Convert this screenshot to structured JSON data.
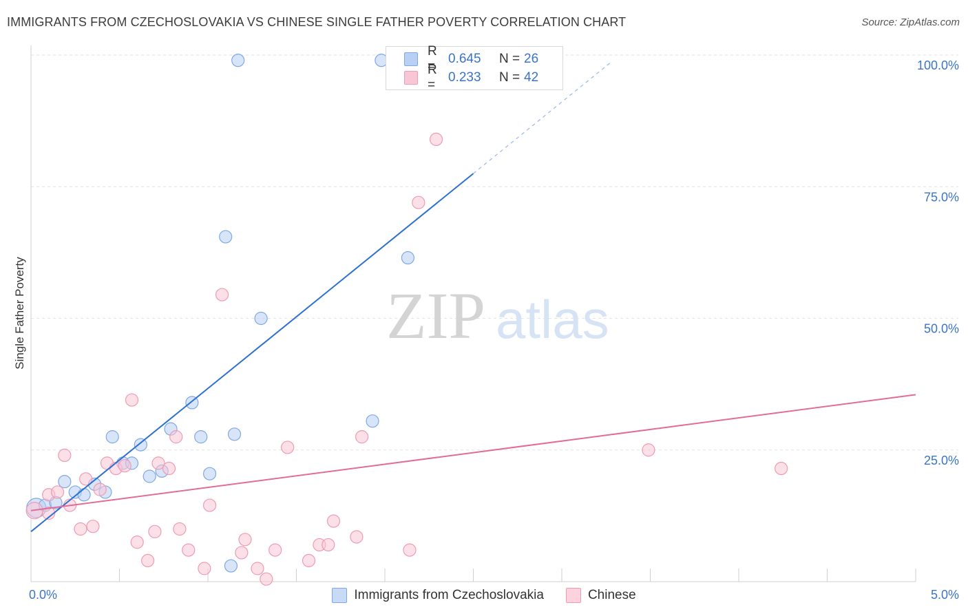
{
  "title": "IMMIGRANTS FROM CZECHOSLOVAKIA VS CHINESE SINGLE FATHER POVERTY CORRELATION CHART",
  "source": "Source: ZipAtlas.com",
  "watermark": {
    "zip": "ZIP",
    "atlas": "atlas"
  },
  "legend_top": [
    {
      "r_label": "R =",
      "r_value": "0.645",
      "n_label": "N =",
      "n_value": "26",
      "fill": "#b8d0f3",
      "stroke": "#7ea7e6"
    },
    {
      "r_label": "R =",
      "r_value": "0.233",
      "n_label": "N =",
      "n_value": "42",
      "fill": "#f9c6d6",
      "stroke": "#ee9ab5"
    }
  ],
  "legend_bottom": [
    {
      "label": "Immigrants from Czechoslovakia",
      "fill": "#c7daf6",
      "stroke": "#7ea7e6"
    },
    {
      "label": "Chinese",
      "fill": "#fbd2de",
      "stroke": "#ee9ab5"
    }
  ],
  "chart_data": {
    "type": "scatter",
    "title": "IMMIGRANTS FROM CZECHOSLOVAKIA VS CHINESE SINGLE FATHER POVERTY CORRELATION CHART",
    "xlabel": "",
    "ylabel": "Single Father Poverty",
    "xlim": [
      0,
      5
    ],
    "ylim": [
      0,
      100
    ],
    "x_tick_labels": [
      "0.0%",
      "5.0%"
    ],
    "y_tick_labels": [
      "25.0%",
      "50.0%",
      "75.0%",
      "100.0%"
    ],
    "y_ticks": [
      25,
      50,
      75,
      100
    ],
    "grid": true,
    "colors": {
      "blue": "#3a73c8",
      "blue_line": "#2b6fd1",
      "pink_line": "#e26b97",
      "axis_text": "#3a73c8"
    },
    "series": [
      {
        "name": "Immigrants from Czechoslovakia",
        "fill": "#b8d0f3",
        "stroke": "#7ea7e6",
        "trend": {
          "x0": 0,
          "y0": 9.5,
          "x1": 2.5,
          "y1": 77.5,
          "dash_to_x": 3.28,
          "dash_to_y": 98.7
        },
        "points": [
          [
            0.03,
            14.0,
            14
          ],
          [
            0.08,
            14.5,
            9
          ],
          [
            0.14,
            15.0,
            9
          ],
          [
            0.19,
            19.0,
            9
          ],
          [
            0.25,
            17.0,
            9
          ],
          [
            0.3,
            16.5,
            9
          ],
          [
            0.36,
            18.5,
            9
          ],
          [
            0.42,
            17.0,
            9
          ],
          [
            0.46,
            27.5,
            9
          ],
          [
            0.52,
            22.5,
            9
          ],
          [
            0.57,
            22.5,
            9
          ],
          [
            0.62,
            26.0,
            9
          ],
          [
            0.67,
            20.0,
            9
          ],
          [
            0.74,
            21.0,
            9
          ],
          [
            0.79,
            29.0,
            9
          ],
          [
            0.91,
            34.0,
            9
          ],
          [
            0.96,
            27.5,
            9
          ],
          [
            1.01,
            20.5,
            9
          ],
          [
            1.15,
            28.0,
            9
          ],
          [
            1.17,
            99.0,
            9
          ],
          [
            1.1,
            65.5,
            9
          ],
          [
            1.3,
            50.0,
            9
          ],
          [
            1.13,
            3.0,
            9
          ],
          [
            1.93,
            30.5,
            9
          ],
          [
            1.98,
            99.0,
            9
          ],
          [
            2.13,
            61.5,
            9
          ]
        ]
      },
      {
        "name": "Chinese",
        "fill": "#f9c6d6",
        "stroke": "#ee9ab5",
        "trend": {
          "x0": 0,
          "y0": 13.5,
          "x1": 5,
          "y1": 35.5
        },
        "points": [
          [
            0.02,
            13.5,
            12
          ],
          [
            0.1,
            13.0,
            9
          ],
          [
            0.1,
            16.5,
            9
          ],
          [
            0.15,
            17.0,
            9
          ],
          [
            0.19,
            24.0,
            9
          ],
          [
            0.22,
            14.5,
            9
          ],
          [
            0.28,
            10.0,
            9
          ],
          [
            0.31,
            19.5,
            9
          ],
          [
            0.35,
            10.5,
            9
          ],
          [
            0.39,
            17.5,
            9
          ],
          [
            0.43,
            22.5,
            9
          ],
          [
            0.48,
            21.5,
            9
          ],
          [
            0.53,
            22.0,
            9
          ],
          [
            0.57,
            34.5,
            9
          ],
          [
            0.6,
            7.5,
            9
          ],
          [
            0.66,
            4.0,
            9
          ],
          [
            0.7,
            9.5,
            9
          ],
          [
            0.72,
            22.5,
            9
          ],
          [
            0.78,
            21.5,
            9
          ],
          [
            0.82,
            27.5,
            9
          ],
          [
            0.84,
            10.0,
            9
          ],
          [
            0.89,
            6.0,
            9
          ],
          [
            0.98,
            2.5,
            9
          ],
          [
            1.01,
            14.5,
            9
          ],
          [
            1.08,
            54.5,
            9
          ],
          [
            1.19,
            5.5,
            9
          ],
          [
            1.21,
            8.0,
            9
          ],
          [
            1.28,
            2.5,
            9
          ],
          [
            1.33,
            0.5,
            9
          ],
          [
            1.38,
            6.0,
            9
          ],
          [
            1.45,
            25.5,
            9
          ],
          [
            1.57,
            4.0,
            9
          ],
          [
            1.63,
            7.0,
            9
          ],
          [
            1.68,
            7.0,
            9
          ],
          [
            1.71,
            11.5,
            9
          ],
          [
            1.84,
            8.5,
            9
          ],
          [
            1.87,
            27.5,
            9
          ],
          [
            2.14,
            6.0,
            9
          ],
          [
            2.19,
            72.0,
            9
          ],
          [
            2.29,
            84.0,
            9
          ],
          [
            3.49,
            25.0,
            9
          ],
          [
            4.24,
            21.5,
            9
          ]
        ]
      }
    ]
  }
}
